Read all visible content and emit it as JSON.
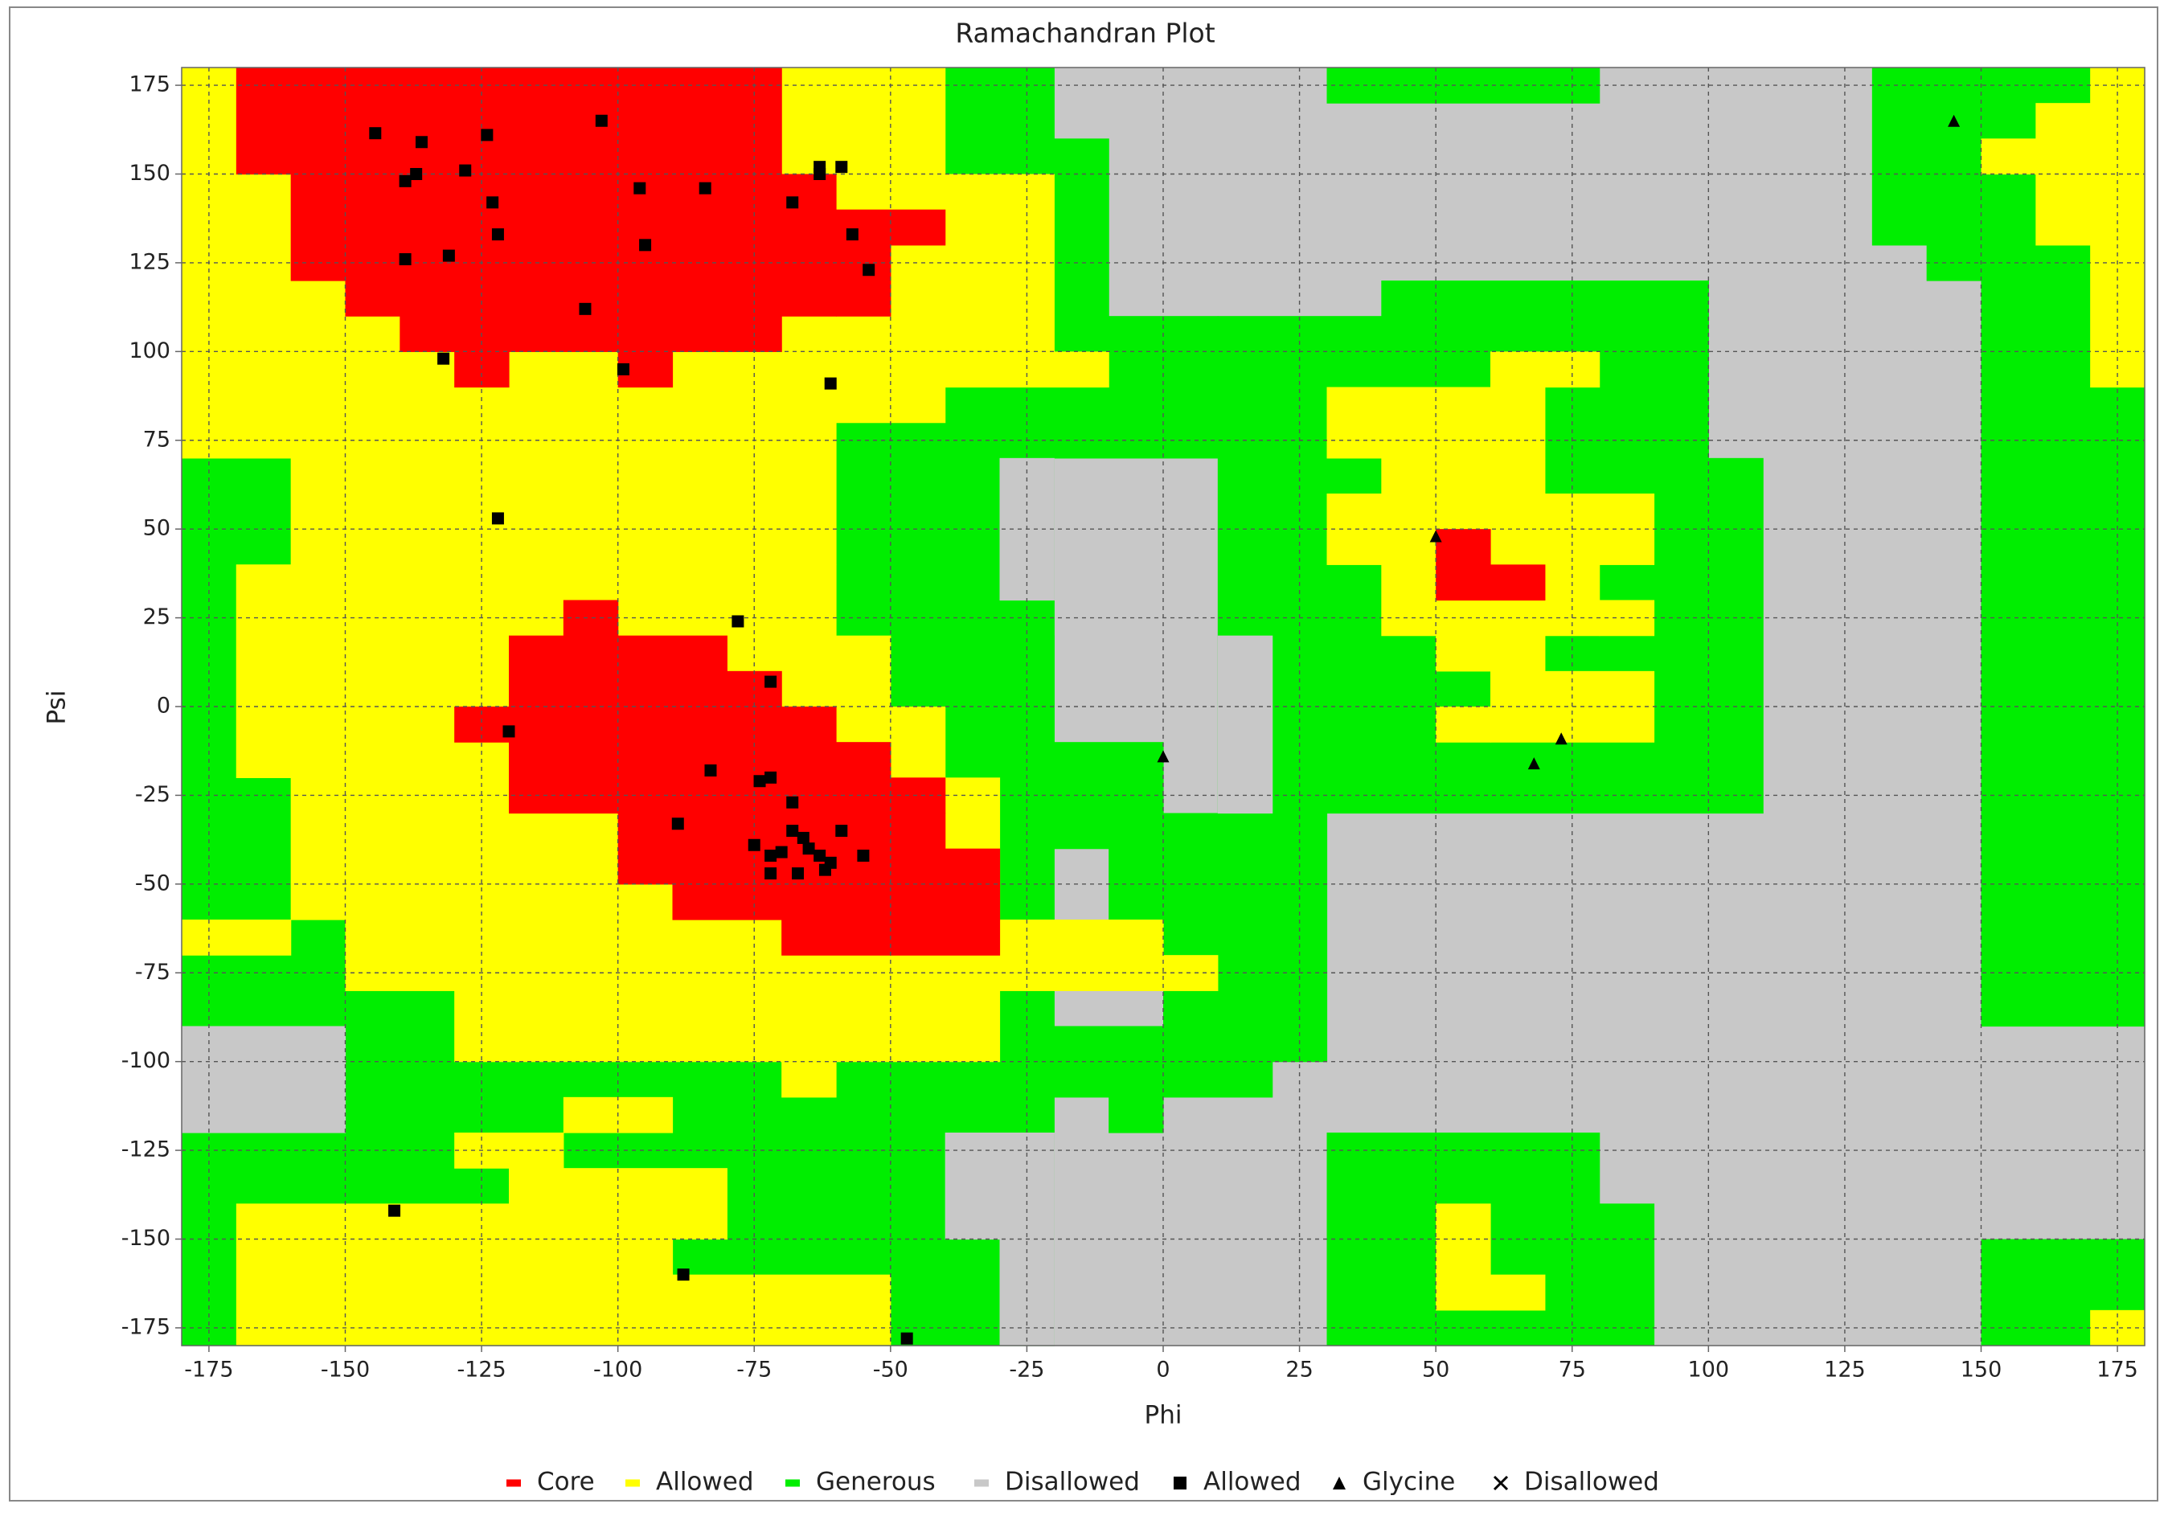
{
  "chart_data": {
    "type": "ramachandran",
    "title": "Ramachandran Plot",
    "x_label": "Phi",
    "y_label": "Psi",
    "xlim": [
      -180,
      180
    ],
    "ylim": [
      -180,
      180
    ],
    "xticks": [
      -175,
      -150,
      -125,
      -100,
      -75,
      -50,
      -25,
      0,
      25,
      50,
      75,
      100,
      125,
      150,
      175
    ],
    "yticks": [
      -175,
      -150,
      -125,
      -100,
      -75,
      -50,
      -25,
      0,
      25,
      50,
      75,
      100,
      125,
      150,
      175
    ],
    "grid": true,
    "regions": [
      {
        "name": "Core",
        "color": "#ff0000",
        "rects": [
          [
            -170,
            -70,
            150,
            180
          ],
          [
            -160,
            -60,
            120,
            150
          ],
          [
            -60,
            -40,
            130,
            140
          ],
          [
            -60,
            -50,
            110,
            130
          ],
          [
            -150,
            -60,
            110,
            120
          ],
          [
            -140,
            -70,
            100,
            110
          ],
          [
            -130,
            -120,
            90,
            100
          ],
          [
            -100,
            -90,
            90,
            100
          ],
          [
            -110,
            -100,
            20,
            30
          ],
          [
            -120,
            -80,
            10,
            20
          ],
          [
            -120,
            -70,
            0,
            10
          ],
          [
            -130,
            -60,
            -10,
            0
          ],
          [
            -120,
            -50,
            -20,
            -10
          ],
          [
            -120,
            -40,
            -30,
            -20
          ],
          [
            -100,
            -40,
            -40,
            -30
          ],
          [
            -100,
            -30,
            -50,
            -40
          ],
          [
            -90,
            -30,
            -60,
            -50
          ],
          [
            -70,
            -30,
            -70,
            -60
          ],
          [
            50,
            60,
            30,
            50
          ],
          [
            60,
            70,
            30,
            40
          ]
        ]
      },
      {
        "name": "Allowed",
        "color": "#ffff00",
        "rects": [
          [
            -180,
            -170,
            70,
            180
          ],
          [
            -170,
            -160,
            70,
            150
          ],
          [
            -170,
            -160,
            -20,
            40
          ],
          [
            -160,
            -20,
            100,
            150
          ],
          [
            -70,
            -40,
            150,
            180
          ],
          [
            -160,
            -10,
            90,
            100
          ],
          [
            -160,
            -40,
            80,
            90
          ],
          [
            -160,
            -60,
            40,
            80
          ],
          [
            -170,
            -60,
            -20,
            40
          ],
          [
            -60,
            -50,
            -20,
            20
          ],
          [
            -60,
            -40,
            -30,
            0
          ],
          [
            -160,
            -30,
            -60,
            -20
          ],
          [
            -180,
            -160,
            -70,
            -60
          ],
          [
            -150,
            0,
            -80,
            -60
          ],
          [
            0,
            10,
            -80,
            -70
          ],
          [
            -130,
            -30,
            -100,
            -80
          ],
          [
            -170,
            -90,
            -180,
            -140
          ],
          [
            -90,
            -50,
            -180,
            -160
          ],
          [
            -130,
            -110,
            -130,
            -120
          ],
          [
            -120,
            -80,
            -150,
            -130
          ],
          [
            -110,
            -90,
            -120,
            -110
          ],
          [
            -70,
            -60,
            -110,
            -100
          ],
          [
            60,
            80,
            90,
            100
          ],
          [
            30,
            70,
            70,
            90
          ],
          [
            40,
            70,
            60,
            70
          ],
          [
            30,
            90,
            40,
            60
          ],
          [
            40,
            80,
            20,
            40
          ],
          [
            80,
            90,
            20,
            30
          ],
          [
            50,
            70,
            10,
            20
          ],
          [
            60,
            90,
            -10,
            10
          ],
          [
            50,
            60,
            -10,
            0
          ],
          [
            50,
            60,
            -170,
            -140
          ],
          [
            60,
            70,
            -170,
            -160
          ],
          [
            170,
            180,
            90,
            180
          ],
          [
            160,
            170,
            130,
            170
          ],
          [
            150,
            160,
            150,
            160
          ],
          [
            170,
            180,
            -180,
            -170
          ]
        ]
      },
      {
        "name": "Generous",
        "color": "#00ee00",
        "rects": [
          [
            -180,
            -20,
            -180,
            180
          ],
          [
            -20,
            -10,
            100,
            160
          ],
          [
            -10,
            10,
            80,
            110
          ],
          [
            40,
            100,
            110,
            120
          ],
          [
            10,
            100,
            90,
            110
          ],
          [
            -60,
            20,
            70,
            80
          ],
          [
            -40,
            20,
            80,
            90
          ],
          [
            -60,
            -30,
            40,
            70
          ],
          [
            -60,
            -30,
            20,
            40
          ],
          [
            -40,
            -20,
            -30,
            20
          ],
          [
            -20,
            0,
            -40,
            -10
          ],
          [
            -10,
            20,
            -70,
            -40
          ],
          [
            0,
            30,
            -100,
            -30
          ],
          [
            -30,
            20,
            -110,
            -90
          ],
          [
            -10,
            0,
            -120,
            -110
          ],
          [
            10,
            100,
            -30,
            90
          ],
          [
            100,
            110,
            -30,
            70
          ],
          [
            30,
            80,
            -180,
            -120
          ],
          [
            80,
            90,
            -180,
            -140
          ],
          [
            30,
            80,
            170,
            180
          ],
          [
            130,
            170,
            130,
            180
          ],
          [
            140,
            150,
            120,
            130
          ],
          [
            150,
            170,
            90,
            150
          ],
          [
            150,
            180,
            -90,
            90
          ],
          [
            150,
            170,
            -180,
            -150
          ],
          [
            170,
            180,
            -170,
            -150
          ]
        ]
      },
      {
        "name": "Disallowed",
        "color": "#c8c8c8",
        "rects": [
          [
            -180,
            180,
            -180,
            180
          ],
          [
            -180,
            -150,
            -120,
            -90
          ],
          [
            -40,
            -20,
            -150,
            -120
          ],
          [
            -30,
            -20,
            -180,
            -150
          ],
          [
            -30,
            -20,
            30,
            70
          ],
          [
            10,
            20,
            -30,
            20
          ]
        ]
      }
    ],
    "series": [
      {
        "name": "Allowed",
        "marker": "square",
        "color": "#000000",
        "x": [
          -144.5,
          -136,
          -137,
          -139,
          -128,
          -124,
          -103,
          -123,
          -122,
          -131,
          -139,
          -96,
          -95,
          -84,
          -68,
          -63,
          -63,
          -59,
          -57,
          -54,
          -106,
          -132,
          -99,
          -61,
          -122,
          -78,
          -72,
          -120,
          -83,
          -74,
          -72,
          -68,
          -89,
          -68,
          -75,
          -66,
          -65,
          -70,
          -72,
          -63,
          -61,
          -59,
          -55,
          -72,
          -67,
          -62,
          -141,
          -88,
          -47
        ],
        "y": [
          161.5,
          159,
          150,
          148,
          151,
          161,
          165,
          142,
          133,
          127,
          126,
          146,
          130,
          146,
          142,
          152,
          150,
          152,
          133,
          123,
          112,
          98,
          95,
          91,
          53,
          24,
          7,
          -7,
          -18,
          -21,
          -20,
          -27,
          -33,
          -35,
          -39,
          -37,
          -40,
          -41,
          -42,
          -42,
          -44,
          -35,
          -42,
          -47,
          -47,
          -46,
          -142,
          -160,
          -178
        ]
      },
      {
        "name": "Glycine",
        "marker": "triangle",
        "color": "#000000",
        "x": [
          50,
          0,
          68,
          73,
          145
        ],
        "y": [
          48,
          -14,
          -16,
          -9,
          165
        ]
      },
      {
        "name": "Disallowed",
        "marker": "cross",
        "color": "#000000",
        "x": [],
        "y": []
      }
    ]
  }
}
